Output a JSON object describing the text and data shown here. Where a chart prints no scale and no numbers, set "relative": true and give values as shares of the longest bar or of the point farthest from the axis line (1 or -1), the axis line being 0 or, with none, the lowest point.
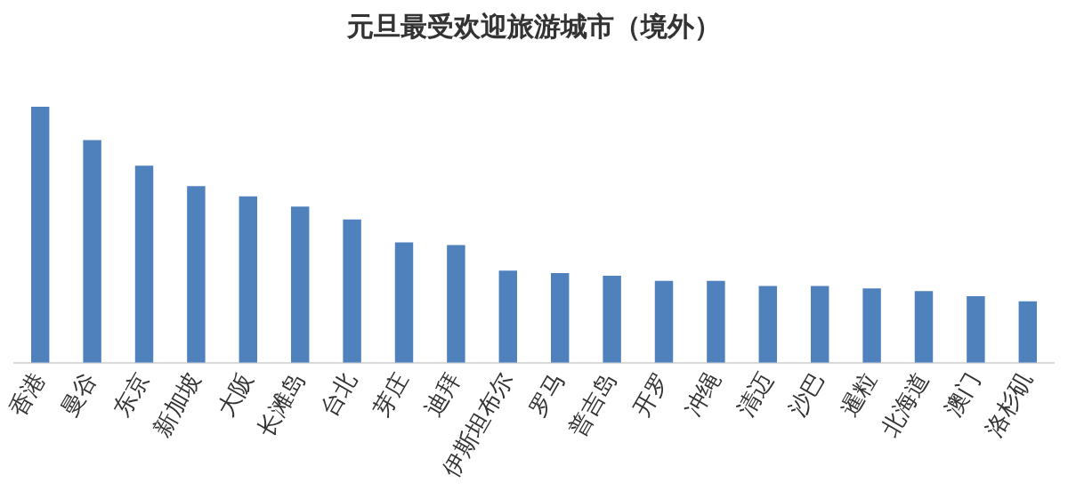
{
  "chart_data": {
    "type": "bar",
    "title": "元旦最受欢迎旅游城市（境外）",
    "relative": true,
    "grid": false,
    "legend": false,
    "categories": [
      "香港",
      "曼谷",
      "东京",
      "新加坡",
      "大阪",
      "长滩岛",
      "台北",
      "芽庄",
      "迪拜",
      "伊斯坦布尔",
      "罗马",
      "普吉岛",
      "开罗",
      "冲绳",
      "清迈",
      "沙巴",
      "暹粒",
      "北海道",
      "澳门",
      "洛杉矶"
    ],
    "color": "#4f81bd",
    "values": [
      1,
      0.87,
      0.77,
      0.69,
      0.65,
      0.61,
      0.56,
      0.47,
      0.46,
      0.36,
      0.35,
      0.34,
      0.32,
      0.32,
      0.3,
      0.3,
      0.29,
      0.28,
      0.26,
      0.24
    ]
  }
}
